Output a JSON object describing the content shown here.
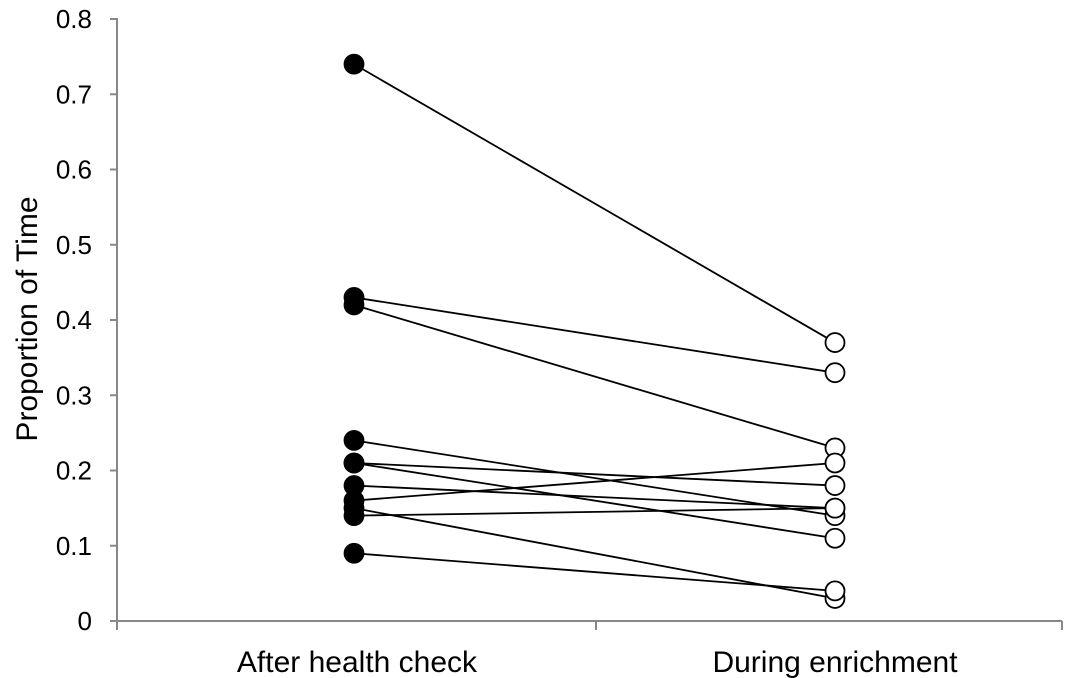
{
  "chart_data": {
    "type": "line",
    "title": "",
    "xlabel": "",
    "ylabel": "Proportion of Time",
    "categories": [
      "After health check",
      "During enrichment"
    ],
    "ylim": [
      0,
      0.8
    ],
    "yticks": [
      "0",
      "0.1",
      "0.2",
      "0.3",
      "0.4",
      "0.5",
      "0.6",
      "0.7",
      "0.8"
    ],
    "grid": false,
    "legend": "none",
    "marker_styles": {
      "After health check": "filled-black-circle",
      "During enrichment": "open-white-circle"
    },
    "series": [
      {
        "values": [
          0.74,
          0.37
        ]
      },
      {
        "values": [
          0.43,
          0.33
        ]
      },
      {
        "values": [
          0.42,
          0.23
        ]
      },
      {
        "values": [
          0.24,
          0.14
        ]
      },
      {
        "values": [
          0.21,
          0.18
        ]
      },
      {
        "values": [
          0.21,
          0.11
        ]
      },
      {
        "values": [
          0.18,
          0.15
        ]
      },
      {
        "values": [
          0.16,
          0.21
        ]
      },
      {
        "values": [
          0.15,
          0.03
        ]
      },
      {
        "values": [
          0.14,
          0.15
        ]
      },
      {
        "values": [
          0.09,
          0.04
        ]
      }
    ]
  }
}
